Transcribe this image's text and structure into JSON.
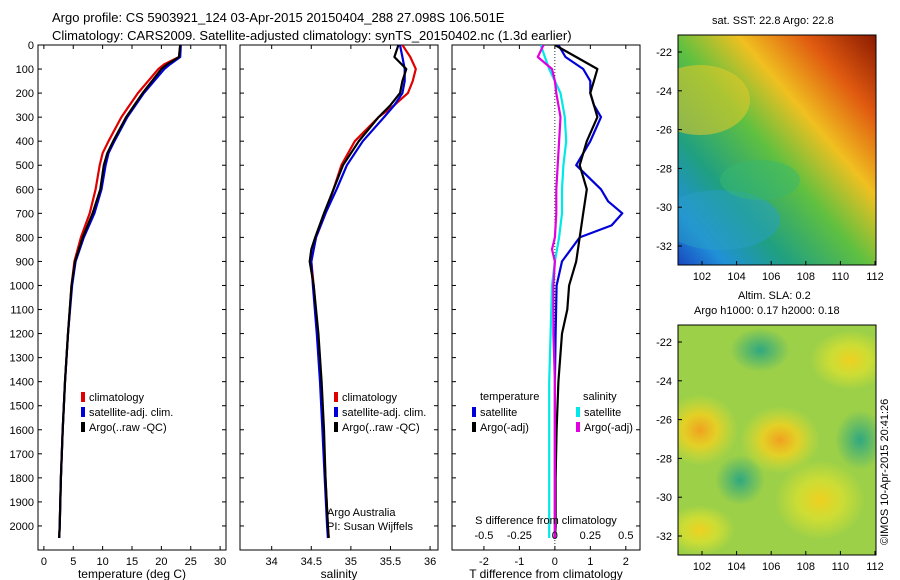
{
  "header": {
    "line1": "Argo profile: CS 5903921_124 03-Apr-2015 20150404_288 27.098S 106.501E",
    "line2": "Climatology: CARS2009. Satellite-adjusted climatology: synTS_20150402.nc (1.3d earlier)"
  },
  "maps": {
    "sst_title": "sat. SST: 22.8 Argo: 22.8",
    "sla_title1": "Altim. SLA: 0.2",
    "sla_title2": "Argo h1000: 0.17 h2000: 0.18",
    "lat_ticks": [
      "-22",
      "-24",
      "-26",
      "-28",
      "-30",
      "-32"
    ],
    "lon_ticks": [
      "102",
      "104",
      "106",
      "108",
      "110",
      "112"
    ]
  },
  "credit": "©IMOS 10-Apr-2015 20:41:26",
  "colors": {
    "climatology": "#e00000",
    "satellite": "#0000d8",
    "argo": "#000000",
    "sat_salinity": "#00e8e8",
    "argo_salinity": "#e000e0"
  },
  "chart_data": [
    {
      "type": "line",
      "name": "temperature",
      "xlabel": "temperature (deg C)",
      "ylabel": "",
      "xlim": [
        -1,
        31
      ],
      "ylim": [
        2100,
        0
      ],
      "x_ticks": [
        "0",
        "5",
        "10",
        "15",
        "20",
        "25",
        "30"
      ],
      "y_ticks": [
        "0",
        "100",
        "200",
        "300",
        "400",
        "500",
        "600",
        "700",
        "800",
        "900",
        "1000",
        "1100",
        "1200",
        "1300",
        "1400",
        "1500",
        "1600",
        "1700",
        "1800",
        "1900",
        "2000"
      ],
      "legend": [
        "climatology",
        "satellite-adj. clim.",
        "Argo(..raw -QC)"
      ],
      "series": [
        {
          "name": "climatology",
          "color": "#e00000",
          "depth": [
            0,
            50,
            80,
            100,
            200,
            300,
            400,
            450,
            500,
            600,
            700,
            800,
            900,
            1000,
            1200,
            1400,
            1600,
            1800,
            2000,
            2050
          ],
          "values": [
            23.2,
            23.0,
            20.5,
            19.5,
            16.0,
            13.2,
            11.0,
            10.0,
            9.5,
            8.8,
            7.8,
            6.3,
            5.2,
            4.7,
            4.1,
            3.6,
            3.2,
            2.9,
            2.7,
            2.6
          ]
        },
        {
          "name": "satellite-adj. clim.",
          "color": "#0000d8",
          "depth": [
            0,
            50,
            80,
            100,
            200,
            300,
            400,
            450,
            500,
            600,
            700,
            800,
            900,
            1000,
            1200,
            1400,
            1600,
            1800,
            2000,
            2050
          ],
          "values": [
            23.3,
            23.2,
            21.5,
            20.5,
            17.0,
            14.2,
            12.0,
            11.0,
            10.5,
            9.8,
            8.6,
            6.8,
            5.4,
            4.8,
            4.1,
            3.6,
            3.2,
            2.9,
            2.7,
            2.6
          ]
        },
        {
          "name": "Argo(..raw -QC)",
          "color": "#000000",
          "depth": [
            0,
            50,
            80,
            100,
            200,
            300,
            400,
            450,
            500,
            600,
            700,
            800,
            900,
            1000,
            1200,
            1400,
            1600,
            1800,
            2000,
            2050
          ],
          "values": [
            23.2,
            23.0,
            21.0,
            20.0,
            16.8,
            14.0,
            11.8,
            10.8,
            10.2,
            9.6,
            8.3,
            6.6,
            5.3,
            4.7,
            4.1,
            3.6,
            3.2,
            2.9,
            2.7,
            2.6
          ]
        }
      ]
    },
    {
      "type": "line",
      "name": "salinity",
      "xlabel": "salinity",
      "ylabel": "",
      "xlim": [
        33.6,
        36.1
      ],
      "ylim": [
        2100,
        0
      ],
      "x_ticks": [
        "34",
        "34.5",
        "35",
        "35.5",
        "36"
      ],
      "legend": [
        "climatology",
        "satellite-adj. clim.",
        "Argo(..raw -QC)"
      ],
      "annotation": [
        "Argo Australia",
        "PI: Susan Wijffels"
      ],
      "series": [
        {
          "name": "climatology",
          "color": "#e00000",
          "depth": [
            0,
            50,
            100,
            150,
            200,
            250,
            300,
            400,
            500,
            600,
            700,
            800,
            900,
            1000,
            1200,
            1400,
            1600,
            1800,
            2000,
            2050
          ],
          "values": [
            35.65,
            35.75,
            35.82,
            35.78,
            35.72,
            35.55,
            35.35,
            35.05,
            34.88,
            34.78,
            34.68,
            34.56,
            34.5,
            34.53,
            34.58,
            34.62,
            34.65,
            34.68,
            34.71,
            34.72
          ]
        },
        {
          "name": "satellite-adj. clim.",
          "color": "#0000d8",
          "depth": [
            0,
            50,
            100,
            150,
            200,
            250,
            300,
            400,
            500,
            600,
            700,
            800,
            900,
            1000,
            1200,
            1400,
            1600,
            1800,
            2000,
            2050
          ],
          "values": [
            35.62,
            35.65,
            35.68,
            35.68,
            35.65,
            35.55,
            35.42,
            35.15,
            34.95,
            34.82,
            34.68,
            34.56,
            34.5,
            34.52,
            34.57,
            34.61,
            34.64,
            34.67,
            34.7,
            34.71
          ]
        },
        {
          "name": "Argo(..raw -QC)",
          "color": "#000000",
          "depth": [
            0,
            50,
            100,
            150,
            200,
            250,
            300,
            400,
            500,
            600,
            700,
            800,
            850,
            900,
            1000,
            1200,
            1400,
            1600,
            1800,
            2000,
            2050
          ],
          "values": [
            35.6,
            35.55,
            35.7,
            35.65,
            35.62,
            35.5,
            35.35,
            35.1,
            34.9,
            34.78,
            34.66,
            34.55,
            34.5,
            34.48,
            34.53,
            34.59,
            34.63,
            34.66,
            34.68,
            34.71,
            34.72
          ]
        }
      ]
    },
    {
      "type": "line",
      "name": "difference",
      "xlabel": "T difference from climatology",
      "x2label": "S difference from climatology",
      "xlim": [
        -2.9,
        2.4
      ],
      "ylim": [
        2100,
        0
      ],
      "x_ticks": [
        "-2",
        "-1",
        "0",
        "1",
        "2"
      ],
      "x2_ticks": [
        "-0.5",
        "-0.25",
        "0",
        "0.25",
        "0.5"
      ],
      "legend_groups": [
        {
          "heading": "temperature",
          "items": [
            "satellite",
            "Argo(-adj)"
          ]
        },
        {
          "heading": "salinity",
          "items": [
            "satellite",
            "Argo(-adj)"
          ]
        }
      ],
      "series": [
        {
          "name": "temperature satellite",
          "color": "#0000d8",
          "depth": [
            0,
            50,
            100,
            150,
            200,
            250,
            300,
            400,
            500,
            600,
            650,
            700,
            750,
            800,
            900,
            1000,
            1200,
            1400,
            1600,
            1800,
            2000,
            2050
          ],
          "values": [
            0.1,
            0.3,
            0.8,
            1.0,
            1.0,
            1.1,
            1.3,
            1.0,
            0.6,
            1.3,
            1.5,
            1.9,
            1.6,
            0.7,
            0.2,
            0.05,
            0.02,
            0.0,
            0.0,
            0.0,
            0.0,
            0.0
          ]
        },
        {
          "name": "temperature Argo(-adj)",
          "color": "#000000",
          "depth": [
            0,
            50,
            100,
            150,
            200,
            250,
            300,
            400,
            500,
            600,
            700,
            800,
            900,
            1000,
            1100,
            1200,
            1400,
            1600,
            1800,
            2000,
            2050
          ],
          "values": [
            0.0,
            0.6,
            1.2,
            1.1,
            1.0,
            1.1,
            1.2,
            0.9,
            0.7,
            0.9,
            0.8,
            0.7,
            0.6,
            0.4,
            0.35,
            0.2,
            0.1,
            0.05,
            0.02,
            0.02,
            0.0
          ]
        },
        {
          "name": "salinity satellite",
          "color": "#00e8e8",
          "depth": [
            0,
            50,
            100,
            150,
            200,
            300,
            400,
            500,
            600,
            700,
            800,
            900,
            1000,
            1200,
            1400,
            1600,
            1800,
            2000,
            2050
          ],
          "values": [
            -0.1,
            -0.07,
            -0.04,
            0.0,
            0.04,
            0.07,
            0.08,
            0.06,
            0.05,
            0.05,
            0.03,
            0.0,
            -0.02,
            -0.03,
            -0.04,
            -0.04,
            -0.04,
            -0.04,
            -0.04
          ]
        },
        {
          "name": "salinity Argo(-adj)",
          "color": "#e000e0",
          "depth": [
            0,
            50,
            100,
            150,
            200,
            300,
            400,
            500,
            600,
            700,
            800,
            850,
            900,
            1000,
            1200,
            1400,
            1600,
            1800,
            2000,
            2050
          ],
          "values": [
            -0.08,
            -0.12,
            -0.02,
            0.0,
            0.01,
            0.04,
            0.03,
            0.02,
            0.01,
            0.01,
            0.0,
            -0.02,
            0.0,
            -0.01,
            -0.01,
            0.0,
            0.0,
            0.0,
            0.0,
            0.0
          ]
        }
      ]
    }
  ]
}
